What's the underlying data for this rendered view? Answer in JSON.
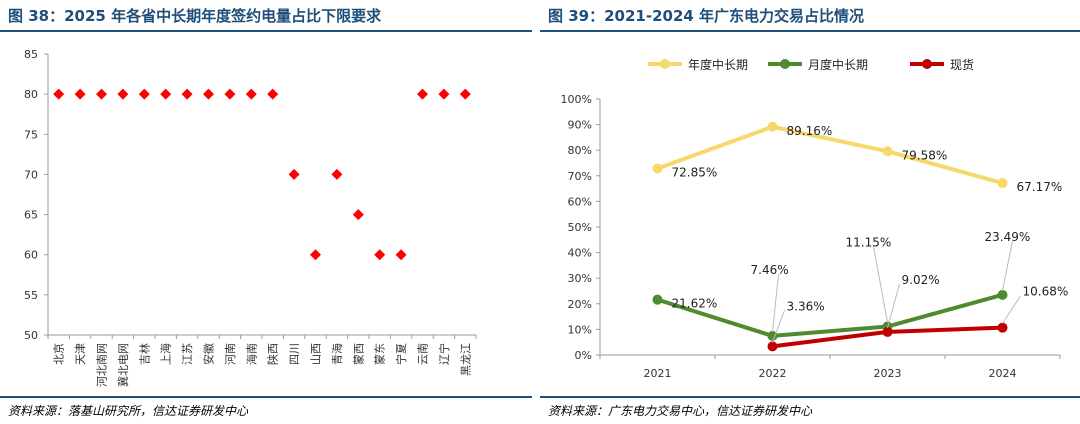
{
  "left": {
    "title": "图 38：2025 年各省中长期年度签约电量占比下限要求",
    "source": "资料来源：落基山研究所，信达证券研发中心",
    "chart_data": {
      "type": "scatter",
      "categories": [
        "北京",
        "天津",
        "河北南网",
        "冀北电网",
        "吉林",
        "上海",
        "江苏",
        "安徽",
        "河南",
        "海南",
        "陕西",
        "四川",
        "山西",
        "青海",
        "蒙西",
        "蒙东",
        "宁夏",
        "云南",
        "辽宁",
        "黑龙江"
      ],
      "values": [
        80,
        80,
        80,
        80,
        80,
        80,
        80,
        80,
        80,
        80,
        80,
        70,
        60,
        70,
        65,
        60,
        60,
        80,
        80,
        80
      ],
      "ylim": [
        50,
        85
      ],
      "yticks": [
        50,
        55,
        60,
        65,
        70,
        75,
        80,
        85
      ],
      "marker": "diamond",
      "color": "#ff0000",
      "grid": false
    }
  },
  "right": {
    "title": "图 39：2021-2024 年广东电力交易占比情况",
    "source": "资料来源：广东电力交易中心，信达证券研发中心",
    "chart_data": {
      "type": "line",
      "categories": [
        "2021",
        "2022",
        "2023",
        "2024"
      ],
      "ylim": [
        0,
        100
      ],
      "yticks": [
        "0%",
        "10%",
        "20%",
        "30%",
        "40%",
        "50%",
        "60%",
        "70%",
        "80%",
        "90%",
        "100%"
      ],
      "legend_position": "top",
      "series": [
        {
          "name": "年度中长期",
          "color": "#f7d96b",
          "values": [
            72.85,
            89.16,
            79.58,
            67.17
          ],
          "labels": [
            "72.85%",
            "89.16%",
            "79.58%",
            "67.17%"
          ]
        },
        {
          "name": "月度中长期",
          "color": "#4e8a2e",
          "values": [
            21.62,
            7.46,
            11.15,
            23.49
          ],
          "labels": [
            "21.62%",
            "7.46%",
            "11.15%",
            "23.49%"
          ]
        },
        {
          "name": "现货",
          "color": "#c00000",
          "values": [
            null,
            3.36,
            9.02,
            10.68
          ],
          "labels": [
            "",
            "3.36%",
            "9.02%",
            "10.68%"
          ]
        }
      ]
    }
  }
}
